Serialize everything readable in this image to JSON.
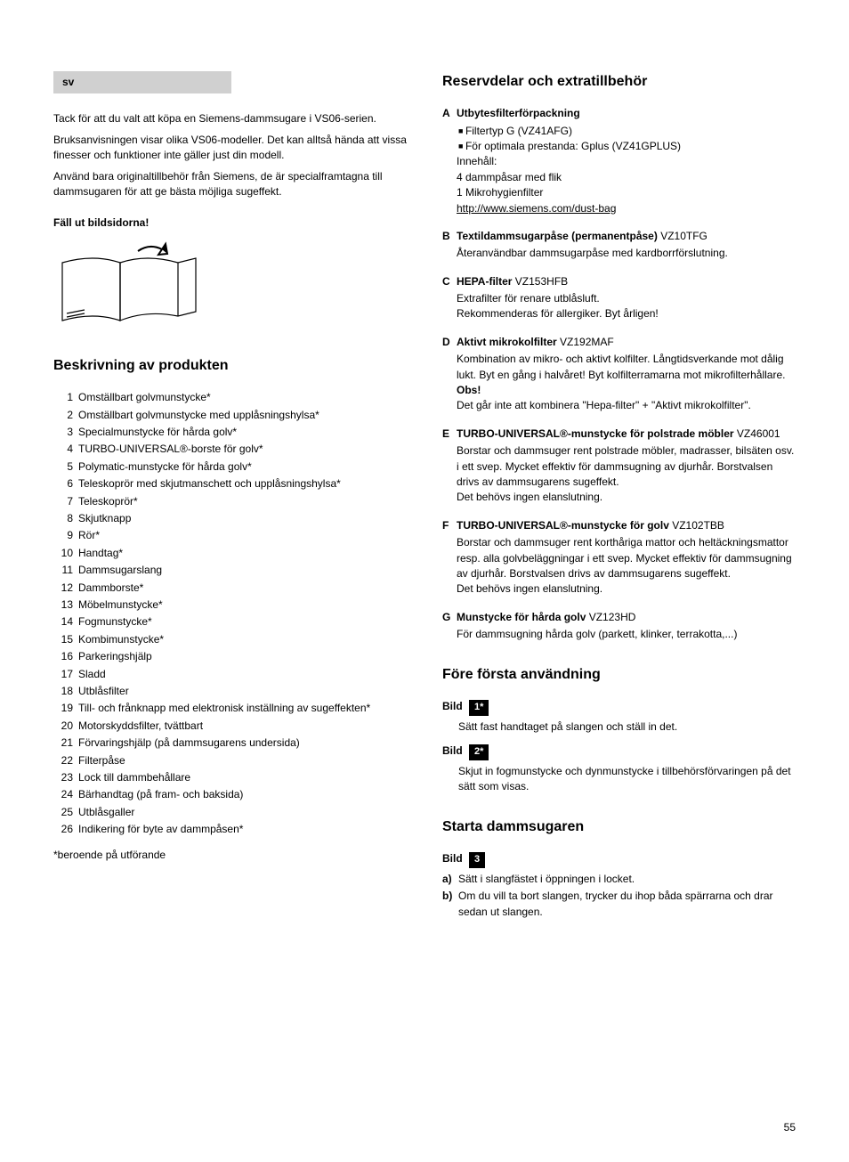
{
  "lang_badge": "sv",
  "intro": {
    "p1": "Tack för att du valt att köpa en Siemens-dammsugare i VS06-serien.",
    "p2": "Bruksanvisningen visar olika VS06-modeller. Det kan alltså hända att vissa finesser och funktioner inte gäller just din modell.",
    "p3": "Använd bara originaltillbehör från Siemens, de är specialframtagna till dammsugaren för att ge bästa möjliga sugeffekt."
  },
  "fold_out": "Fäll ut bildsidorna!",
  "h_desc": "Beskrivning av produkten",
  "parts": [
    "Omställbart golvmunstycke*",
    "Omställbart golvmunstycke med upplåsningshylsa*",
    "Specialmunstycke för hårda golv*",
    "TURBO-UNIVERSAL®-borste för golv*",
    "Polymatic-munstycke för hårda golv*",
    "Teleskoprör med skjutmanschett och upplåsningshylsa*",
    "Teleskoprör*",
    "Skjutknapp",
    "Rör*",
    "Handtag*",
    "Dammsugarslang",
    "Dammborste*",
    "Möbelmunstycke*",
    "Fogmunstycke*",
    "Kombimunstycke*",
    "Parkeringshjälp",
    "Sladd",
    "Utblåsfilter",
    "Till- och frånknapp med elektronisk inställning av sugeffekten*",
    "Motorskyddsfilter, tvättbart",
    "Förvaringshjälp (på dammsugarens undersida)",
    "Filterpåse",
    "Lock till dammbehållare",
    "Bärhandtag (på fram- och baksida)",
    "Utblåsgaller",
    "Indikering för byte av dammpåsen*"
  ],
  "parts_note": "*beroende på utförande",
  "h_spare": "Reservdelar och extratillbehör",
  "spares": {
    "A": {
      "title": "Utbytesfilterförpackning",
      "bullets": [
        "Filtertyp G (VZ41AFG)",
        "För optimala prestanda: Gplus (VZ41GPLUS)"
      ],
      "lines": [
        "Innehåll:",
        "4 dammpåsar med flik",
        "1 Mikrohygienfilter"
      ],
      "link": "http://www.siemens.com/dust-bag"
    },
    "B": {
      "title": "Textildammsugarpåse (permanentpåse)",
      "code": "VZ10TFG",
      "desc": "Återanvändbar dammsugarpåse med kardborrförslutning."
    },
    "C": {
      "title": "HEPA-filter",
      "code": "VZ153HFB",
      "desc": "Extrafilter för renare utblåsluft.\nRekommenderas för allergiker. Byt årligen!"
    },
    "D": {
      "title": "Aktivt mikrokolfilter",
      "code": "VZ192MAF",
      "desc1": "Kombination av mikro- och aktivt kolfilter. Långtidsverkande mot dålig lukt. Byt en gång i halvåret! Byt kolfilterramarna mot mikrofilterhållare.",
      "obs": "Obs!",
      "desc2": "Det går inte att kombinera \"Hepa-filter\" + \"Aktivt mikrokolfilter\"."
    },
    "E": {
      "title": "TURBO-UNIVERSAL®-munstycke  för polstrade möbler",
      "code": "VZ46001",
      "desc": "Borstar och dammsuger rent polstrade möbler, madrasser, bilsäten osv. i ett svep. Mycket effektiv för dammsugning av djurhår. Borstvalsen drivs av dammsugarens sugeffekt.\nDet behövs ingen elanslutning."
    },
    "F": {
      "title": "TURBO-UNIVERSAL®-munstycke för golv",
      "code": "VZ102TBB",
      "desc": "Borstar och dammsuger rent korthåriga mattor och heltäckningsmattor resp. alla golvbeläggningar i ett svep. Mycket effektiv för dammsugning av djurhår. Borstvalsen drivs av dammsugarens sugeffekt.\nDet behövs ingen elanslutning."
    },
    "G": {
      "title": "Munstycke för hårda golv",
      "code": "VZ123HD",
      "desc": "För dammsugning hårda golv (parkett, klinker, terrakotta,...)"
    }
  },
  "h_before": "Före första användning",
  "bild": "Bild",
  "bild1_num": "1*",
  "bild1_text": "Sätt fast handtaget på slangen och ställ in det.",
  "bild2_num": "2*",
  "bild2_text": "Skjut in fogmunstycke och dynmunstycke i tillbehörsförvaringen på det sätt som visas.",
  "h_start": "Starta dammsugaren",
  "bild3_num": "3",
  "bild3_a": "Sätt i slangfästet i öppningen i locket.",
  "bild3_b": "Om du vill ta bort slangen, trycker du ihop båda spärrarna och drar sedan ut slangen.",
  "page_num": "55"
}
